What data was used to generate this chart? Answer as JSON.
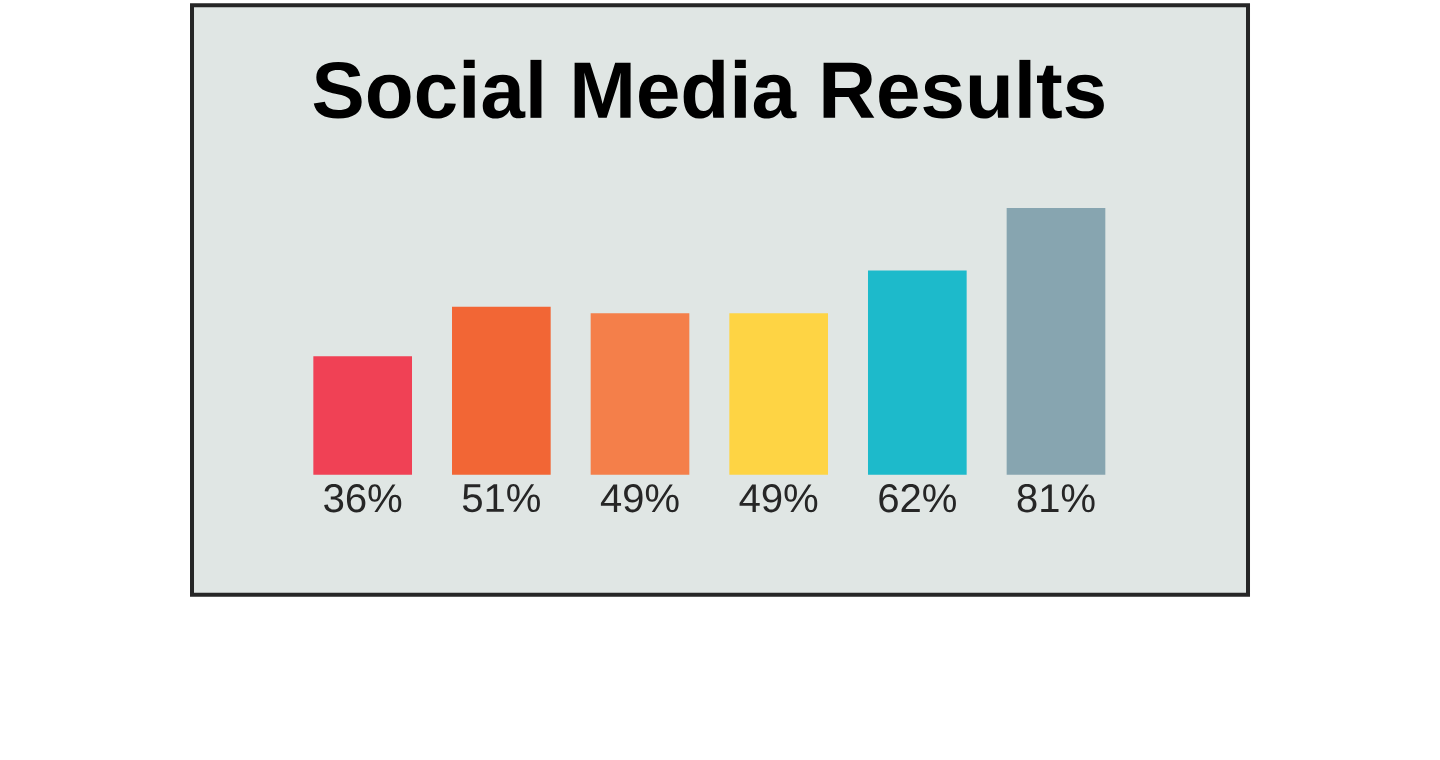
{
  "chart_data": {
    "type": "bar",
    "title": "Social Media Results",
    "categories": [
      null,
      null,
      null,
      null,
      null,
      null
    ],
    "values": [
      36,
      51,
      49,
      49,
      62,
      81
    ],
    "colors": [
      "#f04155",
      "#f26635",
      "#f47f4a",
      "#fed444",
      "#1dbacb",
      "#87a5b0"
    ],
    "value_labels": [
      "36%",
      "51%",
      "49%",
      "49%",
      "62%",
      "81%"
    ]
  }
}
